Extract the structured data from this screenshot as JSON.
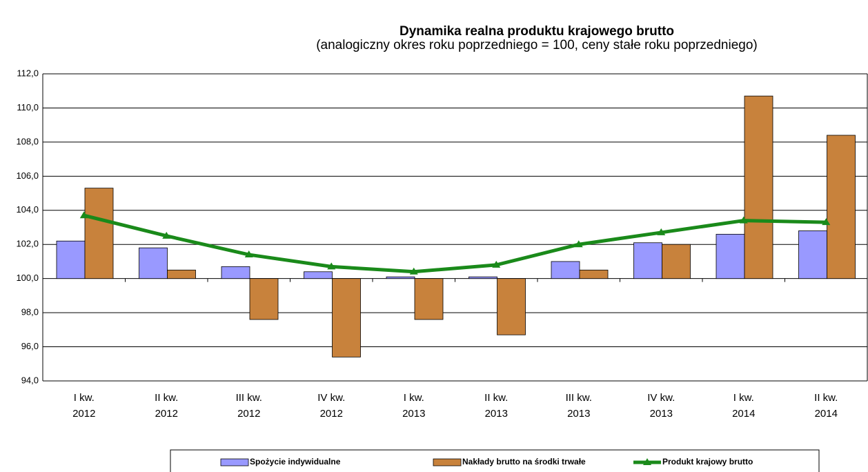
{
  "chart_data": {
    "type": "bar_line",
    "title": "Dynamika realna produktu krajowego brutto",
    "subtitle": "(analogiczny okres roku poprzedniego = 100, ceny stałe roku poprzedniego)",
    "categories": [
      [
        "I kw.",
        "2012"
      ],
      [
        "II kw.",
        "2012"
      ],
      [
        "III kw.",
        "2012"
      ],
      [
        "IV kw.",
        "2012"
      ],
      [
        "I kw.",
        "2013"
      ],
      [
        "II kw.",
        "2013"
      ],
      [
        "III kw.",
        "2013"
      ],
      [
        "IV kw.",
        "2013"
      ],
      [
        "I kw.",
        "2014"
      ],
      [
        "II kw.",
        "2014"
      ]
    ],
    "series": [
      {
        "name": "Spożycie indywidualne",
        "kind": "bar",
        "color": "#9999ff",
        "values": [
          102.2,
          101.8,
          100.7,
          100.4,
          100.1,
          100.1,
          101.0,
          102.1,
          102.6,
          102.8
        ]
      },
      {
        "name": "Nakłady brutto na środki trwałe",
        "kind": "bar",
        "color": "#c8823c",
        "values": [
          105.3,
          100.5,
          97.6,
          95.4,
          97.6,
          96.7,
          100.5,
          102.0,
          110.7,
          108.4
        ]
      },
      {
        "name": "Produkt krajowy brutto",
        "kind": "line",
        "color": "#1a8a1a",
        "values": [
          103.7,
          102.5,
          101.4,
          100.7,
          100.4,
          100.8,
          102.0,
          102.7,
          103.4,
          103.3
        ]
      }
    ],
    "bar_baseline": 100,
    "ylim": [
      94,
      112
    ],
    "yticks": [
      {
        "value": 94,
        "label": "94,0"
      },
      {
        "value": 96,
        "label": "96,0"
      },
      {
        "value": 98,
        "label": "98,0"
      },
      {
        "value": 100,
        "label": "100,0"
      },
      {
        "value": 102,
        "label": "102,0"
      },
      {
        "value": 104,
        "label": "104,0"
      },
      {
        "value": 106,
        "label": "106,0"
      },
      {
        "value": 108,
        "label": "108,0"
      },
      {
        "value": 110,
        "label": "110,0"
      },
      {
        "value": 112,
        "label": "112,0"
      }
    ],
    "grid": true,
    "legend": "bottom"
  }
}
